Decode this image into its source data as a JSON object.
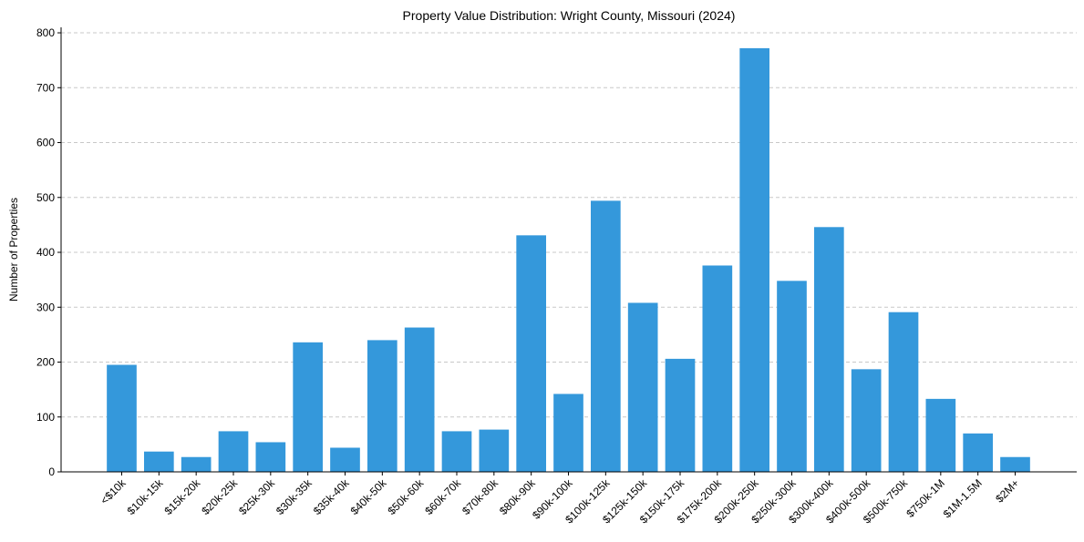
{
  "chart_data": {
    "type": "bar",
    "title": "Property Value Distribution: Wright County, Missouri (2024)",
    "xlabel": "",
    "ylabel": "Number of Properties",
    "ylim": [
      0,
      810
    ],
    "yticks": [
      0,
      100,
      200,
      300,
      400,
      500,
      600,
      700,
      800
    ],
    "grid": "y-dashed",
    "categories": [
      "<$10k",
      "$10k-15k",
      "$15k-20k",
      "$20k-25k",
      "$25k-30k",
      "$30k-35k",
      "$35k-40k",
      "$40k-50k",
      "$50k-60k",
      "$60k-70k",
      "$70k-80k",
      "$80k-90k",
      "$90k-100k",
      "$100k-125k",
      "$125k-150k",
      "$150k-175k",
      "$175k-200k",
      "$200k-250k",
      "$250k-300k",
      "$300k-400k",
      "$400k-500k",
      "$500k-750k",
      "$750k-1M",
      "$1M-1.5M",
      "$2M+"
    ],
    "values": [
      195,
      37,
      27,
      74,
      54,
      236,
      44,
      240,
      263,
      74,
      77,
      431,
      142,
      494,
      308,
      206,
      376,
      772,
      348,
      446,
      187,
      291,
      133,
      70,
      27
    ],
    "bar_color": "#3498db"
  }
}
